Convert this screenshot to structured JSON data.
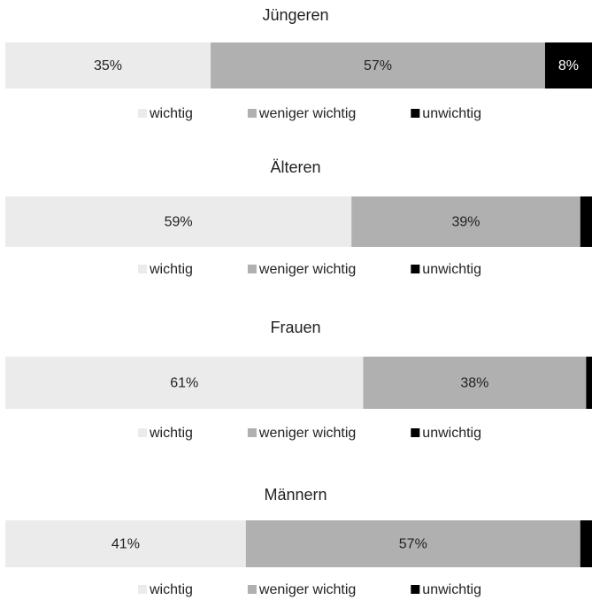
{
  "chart_data": [
    {
      "type": "bar",
      "orientation": "horizontal",
      "stacked": true,
      "title": "Jüngeren",
      "xlim": [
        0,
        100
      ],
      "series": [
        {
          "name": "wichtig",
          "color": "#ebebeb",
          "values": [
            35
          ],
          "value_labels": [
            "35%"
          ]
        },
        {
          "name": "weniger wichtig",
          "color": "#b0b0b0",
          "values": [
            57
          ],
          "value_labels": [
            "57%"
          ]
        },
        {
          "name": "unwichtig",
          "color": "#000000",
          "values": [
            8
          ],
          "value_labels": [
            "8%"
          ]
        }
      ]
    },
    {
      "type": "bar",
      "orientation": "horizontal",
      "stacked": true,
      "title": "Älteren",
      "xlim": [
        0,
        100
      ],
      "series": [
        {
          "name": "wichtig",
          "color": "#ebebeb",
          "values": [
            59
          ],
          "value_labels": [
            "59%"
          ]
        },
        {
          "name": "weniger wichtig",
          "color": "#b0b0b0",
          "values": [
            39
          ],
          "value_labels": [
            "39%"
          ]
        },
        {
          "name": "unwichtig",
          "color": "#000000",
          "values": [
            2
          ],
          "value_labels": [
            "2%"
          ]
        }
      ]
    },
    {
      "type": "bar",
      "orientation": "horizontal",
      "stacked": true,
      "title": "Frauen",
      "xlim": [
        0,
        100
      ],
      "series": [
        {
          "name": "wichtig",
          "color": "#ebebeb",
          "values": [
            61
          ],
          "value_labels": [
            "61%"
          ]
        },
        {
          "name": "weniger wichtig",
          "color": "#b0b0b0",
          "values": [
            38
          ],
          "value_labels": [
            "38%"
          ]
        },
        {
          "name": "unwichtig",
          "color": "#000000",
          "values": [
            1
          ],
          "value_labels": [
            "1%"
          ]
        }
      ]
    },
    {
      "type": "bar",
      "orientation": "horizontal",
      "stacked": true,
      "title": "Männern",
      "xlim": [
        0,
        100
      ],
      "series": [
        {
          "name": "wichtig",
          "color": "#ebebeb",
          "values": [
            41
          ],
          "value_labels": [
            "41%"
          ]
        },
        {
          "name": "weniger wichtig",
          "color": "#b0b0b0",
          "values": [
            57
          ],
          "value_labels": [
            "57%"
          ]
        },
        {
          "name": "unwichtig",
          "color": "#000000",
          "values": [
            2
          ],
          "value_labels": [
            "2%"
          ]
        }
      ]
    }
  ]
}
